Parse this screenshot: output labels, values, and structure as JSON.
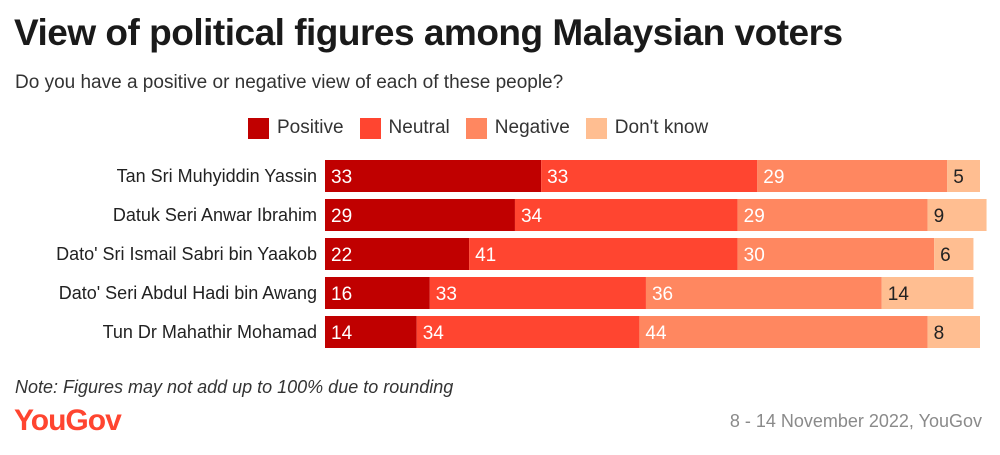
{
  "chart_data": {
    "type": "bar",
    "orientation": "horizontal",
    "stacked": true,
    "title": "View of political figures among Malaysian voters",
    "subtitle": "Do you have a positive or negative view of each of these people?",
    "categories": [
      "Tan Sri Muhyiddin Yassin",
      "Datuk Seri Anwar Ibrahim",
      "Dato' Sri Ismail Sabri bin Yaakob",
      "Dato' Seri Abdul Hadi bin Awang",
      "Tun Dr Mahathir Mohamad"
    ],
    "series": [
      {
        "name": "Positive",
        "color": "#c00000",
        "values": [
          33,
          29,
          22,
          16,
          14
        ]
      },
      {
        "name": "Neutral",
        "color": "#ff4530",
        "values": [
          33,
          34,
          41,
          33,
          34
        ]
      },
      {
        "name": "Negative",
        "color": "#ff8760",
        "values": [
          29,
          29,
          30,
          36,
          44
        ]
      },
      {
        "name": "Don't know",
        "color": "#ffbe91",
        "values": [
          5,
          9,
          6,
          14,
          8
        ]
      }
    ],
    "xlim": [
      0,
      100
    ],
    "legend_position": "top",
    "grid": false,
    "note": "Note: Figures may not add up to 100% due to rounding",
    "source": "8 - 14 November 2022, YouGov"
  },
  "brand": {
    "logo_text": "YouGov",
    "color": "#ff4530"
  }
}
